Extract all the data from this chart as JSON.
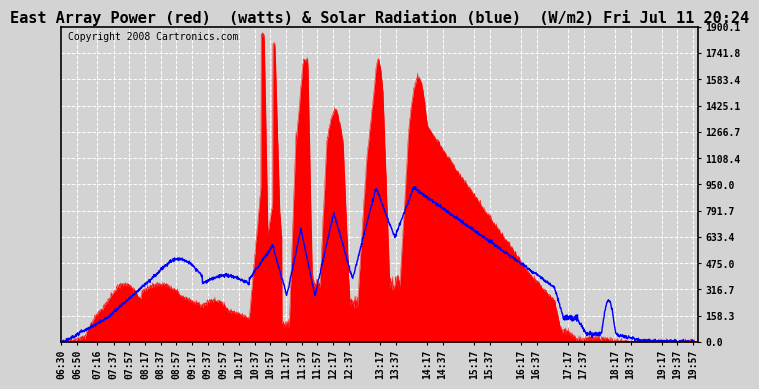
{
  "title": "East Array Power (red)  (watts) & Solar Radiation (blue)  (W/m2) Fri Jul 11 20:24",
  "copyright": "Copyright 2008 Cartronics.com",
  "bg_color": "#d3d3d3",
  "yticks": [
    0.0,
    158.3,
    316.7,
    475.0,
    633.4,
    791.7,
    950.0,
    1108.4,
    1266.7,
    1425.1,
    1583.4,
    1741.8,
    1900.1
  ],
  "ymax": 1900.1,
  "ymin": 0.0,
  "x_labels": [
    "06:30",
    "06:50",
    "07:16",
    "07:37",
    "07:57",
    "08:17",
    "08:37",
    "08:57",
    "09:17",
    "09:37",
    "09:57",
    "10:17",
    "10:37",
    "10:57",
    "11:17",
    "11:37",
    "11:57",
    "12:17",
    "12:37",
    "13:17",
    "13:37",
    "14:17",
    "14:37",
    "15:17",
    "15:37",
    "16:17",
    "16:37",
    "17:17",
    "17:37",
    "18:17",
    "18:37",
    "19:17",
    "19:37",
    "19:57"
  ],
  "red_color": "#ff0000",
  "blue_color": "#0000ff",
  "title_fontsize": 11,
  "copyright_fontsize": 7,
  "tick_label_fontsize": 7
}
